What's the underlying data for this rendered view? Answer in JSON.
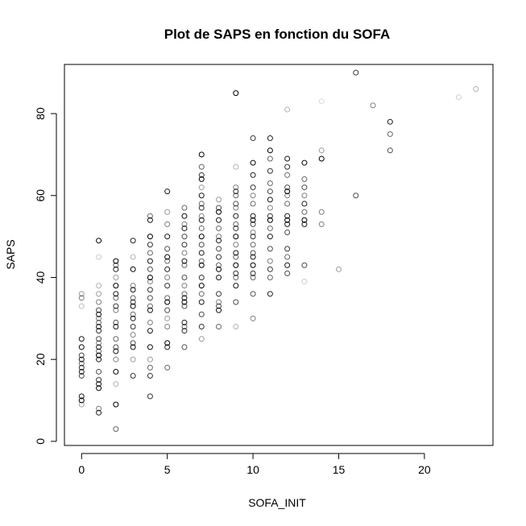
{
  "chart_data": {
    "type": "scatter",
    "title": "Plot de SAPS en fonction du SOFA",
    "xlabel": "SOFA_INIT",
    "ylabel": "SAPS",
    "xlim": [
      -1,
      24
    ],
    "ylim": [
      -1,
      92
    ],
    "xticks": [
      0,
      5,
      10,
      15,
      20
    ],
    "yticks": [
      0,
      20,
      40,
      60,
      80
    ],
    "grid": false,
    "legend": "none",
    "point_color": "#000000",
    "marker": "open-circle",
    "points": [
      {
        "x": 0,
        "y": 9,
        "a": 0.35
      },
      {
        "x": 0,
        "y": 10,
        "a": 1
      },
      {
        "x": 0,
        "y": 11,
        "a": 0.9
      },
      {
        "x": 0,
        "y": 16,
        "a": 0.7
      },
      {
        "x": 0,
        "y": 17,
        "a": 0.9
      },
      {
        "x": 0,
        "y": 18,
        "a": 0.8
      },
      {
        "x": 0,
        "y": 19,
        "a": 0.6
      },
      {
        "x": 0,
        "y": 20,
        "a": 0.9
      },
      {
        "x": 0,
        "y": 21,
        "a": 0.7
      },
      {
        "x": 0,
        "y": 23,
        "a": 1
      },
      {
        "x": 0,
        "y": 25,
        "a": 0.9
      },
      {
        "x": 0,
        "y": 33,
        "a": 0.25
      },
      {
        "x": 0,
        "y": 35,
        "a": 0.5
      },
      {
        "x": 0,
        "y": 36,
        "a": 0.4
      },
      {
        "x": 1,
        "y": 7,
        "a": 0.9
      },
      {
        "x": 1,
        "y": 8,
        "a": 0.5
      },
      {
        "x": 1,
        "y": 13,
        "a": 1
      },
      {
        "x": 1,
        "y": 14,
        "a": 0.9
      },
      {
        "x": 1,
        "y": 15,
        "a": 0.8
      },
      {
        "x": 1,
        "y": 17,
        "a": 0.7
      },
      {
        "x": 1,
        "y": 20,
        "a": 0.9
      },
      {
        "x": 1,
        "y": 21,
        "a": 1
      },
      {
        "x": 1,
        "y": 22,
        "a": 0.6
      },
      {
        "x": 1,
        "y": 23,
        "a": 0.9
      },
      {
        "x": 1,
        "y": 24,
        "a": 0.5
      },
      {
        "x": 1,
        "y": 25,
        "a": 0.7
      },
      {
        "x": 1,
        "y": 27,
        "a": 0.8
      },
      {
        "x": 1,
        "y": 28,
        "a": 0.9
      },
      {
        "x": 1,
        "y": 29,
        "a": 0.6
      },
      {
        "x": 1,
        "y": 30,
        "a": 0.5
      },
      {
        "x": 1,
        "y": 31,
        "a": 0.9
      },
      {
        "x": 1,
        "y": 32,
        "a": 0.7
      },
      {
        "x": 1,
        "y": 34,
        "a": 0.5
      },
      {
        "x": 1,
        "y": 36,
        "a": 0.4
      },
      {
        "x": 1,
        "y": 38,
        "a": 0.3
      },
      {
        "x": 1,
        "y": 45,
        "a": 0.2
      },
      {
        "x": 1,
        "y": 49,
        "a": 1
      },
      {
        "x": 2,
        "y": 3,
        "a": 0.6
      },
      {
        "x": 2,
        "y": 9,
        "a": 1
      },
      {
        "x": 2,
        "y": 14,
        "a": 0.3
      },
      {
        "x": 2,
        "y": 17,
        "a": 1
      },
      {
        "x": 2,
        "y": 20,
        "a": 0.5
      },
      {
        "x": 2,
        "y": 22,
        "a": 0.9
      },
      {
        "x": 2,
        "y": 23,
        "a": 0.7
      },
      {
        "x": 2,
        "y": 25,
        "a": 0.6
      },
      {
        "x": 2,
        "y": 28,
        "a": 0.9
      },
      {
        "x": 2,
        "y": 29,
        "a": 0.7
      },
      {
        "x": 2,
        "y": 32,
        "a": 0.5
      },
      {
        "x": 2,
        "y": 33,
        "a": 0.8
      },
      {
        "x": 2,
        "y": 35,
        "a": 0.6
      },
      {
        "x": 2,
        "y": 36,
        "a": 0.9
      },
      {
        "x": 2,
        "y": 38,
        "a": 1
      },
      {
        "x": 2,
        "y": 40,
        "a": 0.4
      },
      {
        "x": 2,
        "y": 42,
        "a": 0.9
      },
      {
        "x": 2,
        "y": 43,
        "a": 0.6
      },
      {
        "x": 2,
        "y": 44,
        "a": 1
      },
      {
        "x": 3,
        "y": 16,
        "a": 0.8
      },
      {
        "x": 3,
        "y": 20,
        "a": 0.4
      },
      {
        "x": 3,
        "y": 23,
        "a": 1
      },
      {
        "x": 3,
        "y": 24,
        "a": 0.7
      },
      {
        "x": 3,
        "y": 26,
        "a": 0.5
      },
      {
        "x": 3,
        "y": 28,
        "a": 0.8
      },
      {
        "x": 3,
        "y": 30,
        "a": 0.9
      },
      {
        "x": 3,
        "y": 31,
        "a": 0.6
      },
      {
        "x": 3,
        "y": 33,
        "a": 1
      },
      {
        "x": 3,
        "y": 34,
        "a": 0.8
      },
      {
        "x": 3,
        "y": 35,
        "a": 0.6
      },
      {
        "x": 3,
        "y": 37,
        "a": 0.9
      },
      {
        "x": 3,
        "y": 38,
        "a": 0.5
      },
      {
        "x": 3,
        "y": 42,
        "a": 1
      },
      {
        "x": 3,
        "y": 45,
        "a": 0.3
      },
      {
        "x": 3,
        "y": 49,
        "a": 0.9
      },
      {
        "x": 4,
        "y": 11,
        "a": 0.8
      },
      {
        "x": 4,
        "y": 16,
        "a": 0.8
      },
      {
        "x": 4,
        "y": 18,
        "a": 0.6
      },
      {
        "x": 4,
        "y": 20,
        "a": 0.4
      },
      {
        "x": 4,
        "y": 23,
        "a": 1
      },
      {
        "x": 4,
        "y": 27,
        "a": 0.9
      },
      {
        "x": 4,
        "y": 29,
        "a": 0.5
      },
      {
        "x": 4,
        "y": 32,
        "a": 0.9
      },
      {
        "x": 4,
        "y": 33,
        "a": 0.6
      },
      {
        "x": 4,
        "y": 35,
        "a": 0.7
      },
      {
        "x": 4,
        "y": 37,
        "a": 0.8
      },
      {
        "x": 4,
        "y": 39,
        "a": 0.5
      },
      {
        "x": 4,
        "y": 40,
        "a": 1
      },
      {
        "x": 4,
        "y": 42,
        "a": 0.7
      },
      {
        "x": 4,
        "y": 44,
        "a": 0.9
      },
      {
        "x": 4,
        "y": 46,
        "a": 0.6
      },
      {
        "x": 4,
        "y": 48,
        "a": 0.8
      },
      {
        "x": 4,
        "y": 50,
        "a": 1
      },
      {
        "x": 4,
        "y": 54,
        "a": 0.9
      },
      {
        "x": 4,
        "y": 55,
        "a": 0.6
      },
      {
        "x": 5,
        "y": 18,
        "a": 0.6
      },
      {
        "x": 5,
        "y": 23,
        "a": 0.9
      },
      {
        "x": 5,
        "y": 24,
        "a": 1
      },
      {
        "x": 5,
        "y": 28,
        "a": 0.5
      },
      {
        "x": 5,
        "y": 30,
        "a": 0.4
      },
      {
        "x": 5,
        "y": 32,
        "a": 0.7
      },
      {
        "x": 5,
        "y": 34,
        "a": 1
      },
      {
        "x": 5,
        "y": 35,
        "a": 0.6
      },
      {
        "x": 5,
        "y": 38,
        "a": 0.8
      },
      {
        "x": 5,
        "y": 40,
        "a": 0.5
      },
      {
        "x": 5,
        "y": 42,
        "a": 0.9
      },
      {
        "x": 5,
        "y": 44,
        "a": 0.6
      },
      {
        "x": 5,
        "y": 45,
        "a": 1
      },
      {
        "x": 5,
        "y": 47,
        "a": 0.7
      },
      {
        "x": 5,
        "y": 50,
        "a": 0.9
      },
      {
        "x": 5,
        "y": 53,
        "a": 0.5
      },
      {
        "x": 5,
        "y": 56,
        "a": 0.4
      },
      {
        "x": 5,
        "y": 61,
        "a": 0.9
      },
      {
        "x": 6,
        "y": 23,
        "a": 0.7
      },
      {
        "x": 6,
        "y": 27,
        "a": 0.8
      },
      {
        "x": 6,
        "y": 28,
        "a": 0.6
      },
      {
        "x": 6,
        "y": 29,
        "a": 0.9
      },
      {
        "x": 6,
        "y": 33,
        "a": 0.7
      },
      {
        "x": 6,
        "y": 34,
        "a": 1
      },
      {
        "x": 6,
        "y": 35,
        "a": 0.9
      },
      {
        "x": 6,
        "y": 36,
        "a": 0.6
      },
      {
        "x": 6,
        "y": 38,
        "a": 0.5
      },
      {
        "x": 6,
        "y": 40,
        "a": 0.7
      },
      {
        "x": 6,
        "y": 43,
        "a": 0.6
      },
      {
        "x": 6,
        "y": 44,
        "a": 0.9
      },
      {
        "x": 6,
        "y": 46,
        "a": 0.5
      },
      {
        "x": 6,
        "y": 48,
        "a": 0.8
      },
      {
        "x": 6,
        "y": 50,
        "a": 0.7
      },
      {
        "x": 6,
        "y": 52,
        "a": 0.9
      },
      {
        "x": 6,
        "y": 53,
        "a": 0.5
      },
      {
        "x": 6,
        "y": 55,
        "a": 1
      },
      {
        "x": 6,
        "y": 57,
        "a": 0.6
      },
      {
        "x": 7,
        "y": 25,
        "a": 0.4
      },
      {
        "x": 7,
        "y": 28,
        "a": 0.8
      },
      {
        "x": 7,
        "y": 31,
        "a": 0.7
      },
      {
        "x": 7,
        "y": 34,
        "a": 0.9
      },
      {
        "x": 7,
        "y": 36,
        "a": 0.6
      },
      {
        "x": 7,
        "y": 38,
        "a": 1
      },
      {
        "x": 7,
        "y": 40,
        "a": 0.8
      },
      {
        "x": 7,
        "y": 43,
        "a": 1
      },
      {
        "x": 7,
        "y": 44,
        "a": 0.6
      },
      {
        "x": 7,
        "y": 46,
        "a": 0.9
      },
      {
        "x": 7,
        "y": 48,
        "a": 0.7
      },
      {
        "x": 7,
        "y": 50,
        "a": 1
      },
      {
        "x": 7,
        "y": 52,
        "a": 0.6
      },
      {
        "x": 7,
        "y": 54,
        "a": 0.9
      },
      {
        "x": 7,
        "y": 55,
        "a": 0.5
      },
      {
        "x": 7,
        "y": 57,
        "a": 0.8
      },
      {
        "x": 7,
        "y": 58,
        "a": 0.6
      },
      {
        "x": 7,
        "y": 60,
        "a": 0.9
      },
      {
        "x": 7,
        "y": 62,
        "a": 0.4
      },
      {
        "x": 7,
        "y": 64,
        "a": 1
      },
      {
        "x": 7,
        "y": 65,
        "a": 0.8
      },
      {
        "x": 7,
        "y": 67,
        "a": 0.6
      },
      {
        "x": 7,
        "y": 70,
        "a": 1
      },
      {
        "x": 8,
        "y": 28,
        "a": 0.6
      },
      {
        "x": 8,
        "y": 32,
        "a": 0.9
      },
      {
        "x": 8,
        "y": 33,
        "a": 0.7
      },
      {
        "x": 8,
        "y": 34,
        "a": 0.5
      },
      {
        "x": 8,
        "y": 36,
        "a": 0.8
      },
      {
        "x": 8,
        "y": 40,
        "a": 0.9
      },
      {
        "x": 8,
        "y": 42,
        "a": 1
      },
      {
        "x": 8,
        "y": 43,
        "a": 0.6
      },
      {
        "x": 8,
        "y": 45,
        "a": 0.8
      },
      {
        "x": 8,
        "y": 47,
        "a": 0.7
      },
      {
        "x": 8,
        "y": 49,
        "a": 0.9
      },
      {
        "x": 8,
        "y": 50,
        "a": 0.5
      },
      {
        "x": 8,
        "y": 52,
        "a": 0.6
      },
      {
        "x": 8,
        "y": 54,
        "a": 0.9
      },
      {
        "x": 8,
        "y": 56,
        "a": 1
      },
      {
        "x": 8,
        "y": 57,
        "a": 0.7
      },
      {
        "x": 8,
        "y": 59,
        "a": 0.4
      },
      {
        "x": 9,
        "y": 28,
        "a": 0.3
      },
      {
        "x": 9,
        "y": 34,
        "a": 0.7
      },
      {
        "x": 9,
        "y": 38,
        "a": 0.9
      },
      {
        "x": 9,
        "y": 40,
        "a": 0.6
      },
      {
        "x": 9,
        "y": 41,
        "a": 0.8
      },
      {
        "x": 9,
        "y": 43,
        "a": 1
      },
      {
        "x": 9,
        "y": 45,
        "a": 0.6
      },
      {
        "x": 9,
        "y": 46,
        "a": 0.9
      },
      {
        "x": 9,
        "y": 48,
        "a": 0.5
      },
      {
        "x": 9,
        "y": 50,
        "a": 1
      },
      {
        "x": 9,
        "y": 52,
        "a": 0.8
      },
      {
        "x": 9,
        "y": 53,
        "a": 0.6
      },
      {
        "x": 9,
        "y": 55,
        "a": 0.9
      },
      {
        "x": 9,
        "y": 57,
        "a": 0.5
      },
      {
        "x": 9,
        "y": 58,
        "a": 0.7
      },
      {
        "x": 9,
        "y": 60,
        "a": 0.6
      },
      {
        "x": 9,
        "y": 61,
        "a": 0.8
      },
      {
        "x": 9,
        "y": 62,
        "a": 0.5
      },
      {
        "x": 9,
        "y": 67,
        "a": 0.3
      },
      {
        "x": 9,
        "y": 85,
        "a": 1
      },
      {
        "x": 10,
        "y": 30,
        "a": 0.5
      },
      {
        "x": 10,
        "y": 36,
        "a": 0.7
      },
      {
        "x": 10,
        "y": 40,
        "a": 0.6
      },
      {
        "x": 10,
        "y": 41,
        "a": 0.8
      },
      {
        "x": 10,
        "y": 43,
        "a": 1
      },
      {
        "x": 10,
        "y": 45,
        "a": 0.9
      },
      {
        "x": 10,
        "y": 46,
        "a": 0.7
      },
      {
        "x": 10,
        "y": 48,
        "a": 0.6
      },
      {
        "x": 10,
        "y": 50,
        "a": 0.8
      },
      {
        "x": 10,
        "y": 51,
        "a": 0.5
      },
      {
        "x": 10,
        "y": 53,
        "a": 0.7
      },
      {
        "x": 10,
        "y": 54,
        "a": 1
      },
      {
        "x": 10,
        "y": 55,
        "a": 0.9
      },
      {
        "x": 10,
        "y": 58,
        "a": 0.6
      },
      {
        "x": 10,
        "y": 60,
        "a": 0.5
      },
      {
        "x": 10,
        "y": 62,
        "a": 0.8
      },
      {
        "x": 10,
        "y": 65,
        "a": 0.9
      },
      {
        "x": 10,
        "y": 68,
        "a": 1
      },
      {
        "x": 10,
        "y": 74,
        "a": 0.8
      },
      {
        "x": 11,
        "y": 36,
        "a": 0.9
      },
      {
        "x": 11,
        "y": 40,
        "a": 0.6
      },
      {
        "x": 11,
        "y": 42,
        "a": 0.8
      },
      {
        "x": 11,
        "y": 44,
        "a": 0.5
      },
      {
        "x": 11,
        "y": 47,
        "a": 0.7
      },
      {
        "x": 11,
        "y": 50,
        "a": 0.9
      },
      {
        "x": 11,
        "y": 52,
        "a": 0.6
      },
      {
        "x": 11,
        "y": 54,
        "a": 1
      },
      {
        "x": 11,
        "y": 55,
        "a": 0.8
      },
      {
        "x": 11,
        "y": 57,
        "a": 0.5
      },
      {
        "x": 11,
        "y": 59,
        "a": 0.9
      },
      {
        "x": 11,
        "y": 61,
        "a": 0.7
      },
      {
        "x": 11,
        "y": 63,
        "a": 0.6
      },
      {
        "x": 11,
        "y": 66,
        "a": 0.8
      },
      {
        "x": 11,
        "y": 69,
        "a": 0.6
      },
      {
        "x": 11,
        "y": 71,
        "a": 1
      },
      {
        "x": 11,
        "y": 74,
        "a": 0.9
      },
      {
        "x": 12,
        "y": 41,
        "a": 0.7
      },
      {
        "x": 12,
        "y": 43,
        "a": 0.9
      },
      {
        "x": 12,
        "y": 45,
        "a": 0.6
      },
      {
        "x": 12,
        "y": 47,
        "a": 0.8
      },
      {
        "x": 12,
        "y": 51,
        "a": 0.7
      },
      {
        "x": 12,
        "y": 53,
        "a": 0.9
      },
      {
        "x": 12,
        "y": 54,
        "a": 1
      },
      {
        "x": 12,
        "y": 55,
        "a": 0.9
      },
      {
        "x": 12,
        "y": 58,
        "a": 0.6
      },
      {
        "x": 12,
        "y": 60,
        "a": 0.5
      },
      {
        "x": 12,
        "y": 61,
        "a": 1
      },
      {
        "x": 12,
        "y": 62,
        "a": 0.7
      },
      {
        "x": 12,
        "y": 65,
        "a": 0.6
      },
      {
        "x": 12,
        "y": 67,
        "a": 0.8
      },
      {
        "x": 12,
        "y": 69,
        "a": 0.9
      },
      {
        "x": 12,
        "y": 81,
        "a": 0.3
      },
      {
        "x": 13,
        "y": 39,
        "a": 0.2
      },
      {
        "x": 13,
        "y": 43,
        "a": 0.7
      },
      {
        "x": 13,
        "y": 53,
        "a": 0.9
      },
      {
        "x": 13,
        "y": 54,
        "a": 1
      },
      {
        "x": 13,
        "y": 56,
        "a": 0.6
      },
      {
        "x": 13,
        "y": 58,
        "a": 0.9
      },
      {
        "x": 13,
        "y": 60,
        "a": 0.5
      },
      {
        "x": 13,
        "y": 62,
        "a": 0.7
      },
      {
        "x": 13,
        "y": 64,
        "a": 0.6
      },
      {
        "x": 13,
        "y": 68,
        "a": 1
      },
      {
        "x": 14,
        "y": 53,
        "a": 0.5
      },
      {
        "x": 14,
        "y": 56,
        "a": 0.5
      },
      {
        "x": 14,
        "y": 69,
        "a": 1
      },
      {
        "x": 14,
        "y": 71,
        "a": 0.4
      },
      {
        "x": 14,
        "y": 83,
        "a": 0.15
      },
      {
        "x": 15,
        "y": 42,
        "a": 0.4
      },
      {
        "x": 16,
        "y": 60,
        "a": 0.7
      },
      {
        "x": 16,
        "y": 90,
        "a": 0.8
      },
      {
        "x": 17,
        "y": 82,
        "a": 0.5
      },
      {
        "x": 18,
        "y": 71,
        "a": 0.7
      },
      {
        "x": 18,
        "y": 75,
        "a": 0.6
      },
      {
        "x": 18,
        "y": 78,
        "a": 0.9
      },
      {
        "x": 22,
        "y": 84,
        "a": 0.2
      },
      {
        "x": 23,
        "y": 86,
        "a": 0.3
      }
    ]
  }
}
